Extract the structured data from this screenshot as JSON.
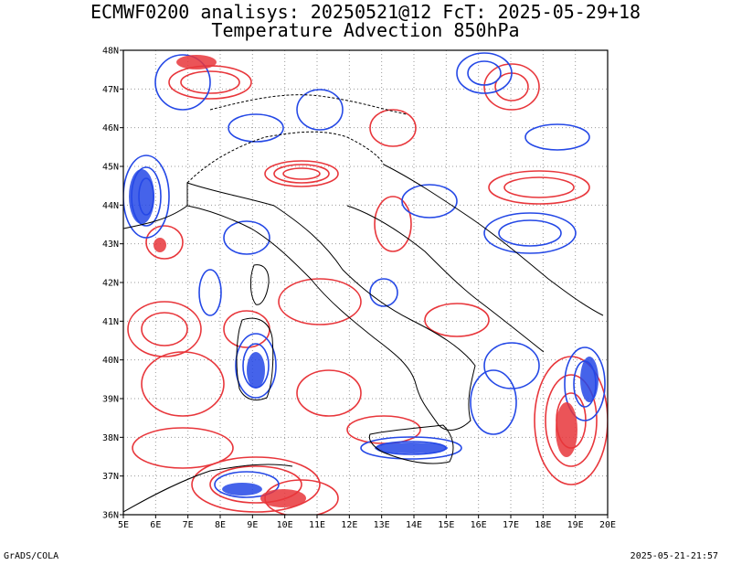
{
  "title": {
    "line1": "ECMWF0200 analisys: 20250521@12 FcT: 2025-05-29+18",
    "line2": "Temperature Advection 850hPa"
  },
  "map": {
    "lon_range": [
      5,
      20
    ],
    "lat_range": [
      36,
      48
    ],
    "lon_ticks": [
      "5E",
      "6E",
      "7E",
      "8E",
      "9E",
      "10E",
      "11E",
      "12E",
      "13E",
      "14E",
      "15E",
      "16E",
      "17E",
      "18E",
      "19E",
      "20E"
    ],
    "lat_ticks": [
      "36N",
      "37N",
      "38N",
      "39N",
      "40N",
      "41N",
      "42N",
      "43N",
      "44N",
      "45N",
      "46N",
      "47N",
      "48N"
    ],
    "grid": "dotted",
    "colors": {
      "positive_advection": "#e8363b",
      "negative_advection": "#2448e6",
      "coastline": "#000000",
      "grid": "#9a9a9a"
    }
  },
  "footer": {
    "left": "GrADS/COLA",
    "right": "2025-05-21-21:57"
  }
}
